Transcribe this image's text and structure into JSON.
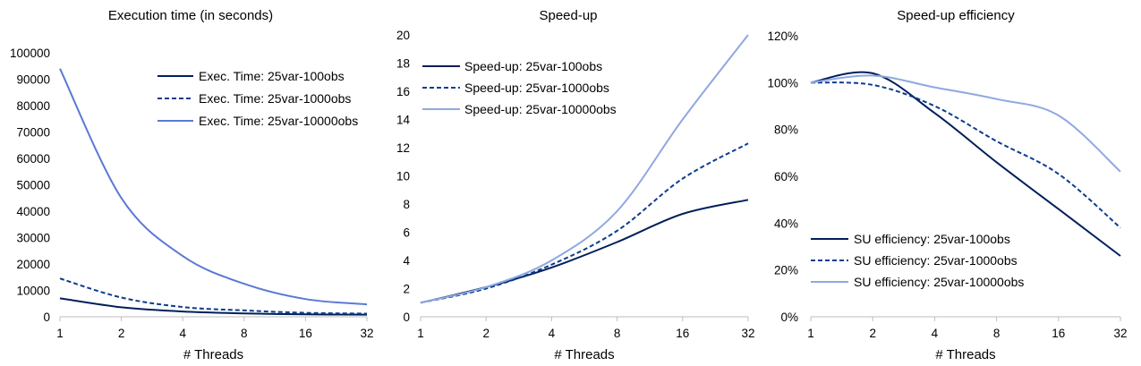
{
  "chart_data": [
    {
      "type": "line",
      "title": "Execution time (in seconds)",
      "xlabel": "# Threads",
      "ylabel": "",
      "x_scale": "log2",
      "categories": [
        "1",
        "2",
        "4",
        "8",
        "16",
        "32"
      ],
      "x": [
        1,
        2,
        4,
        8,
        16,
        32
      ],
      "ylim": [
        0,
        100000
      ],
      "yticks": [
        "0",
        "10000",
        "20000",
        "30000",
        "40000",
        "50000",
        "60000",
        "70000",
        "80000",
        "90000",
        "100000"
      ],
      "legend_position": "top-right",
      "series": [
        {
          "name": "Exec. Time: 25var-100obs",
          "color": "#001f5c",
          "dash": "solid",
          "values": [
            7000,
            3600,
            2000,
            1300,
            900,
            800
          ]
        },
        {
          "name": "Exec. Time: 25var-1000obs",
          "color": "#0b3d8c",
          "dash": "dashed",
          "values": [
            14500,
            7300,
            3700,
            2400,
            1500,
            1200
          ]
        },
        {
          "name": "Exec. Time: 25var-10000obs",
          "color": "#5b79d4",
          "dash": "solid",
          "values": [
            94000,
            45000,
            23000,
            12500,
            6700,
            4700
          ]
        }
      ]
    },
    {
      "type": "line",
      "title": "Speed-up",
      "xlabel": "# Threads",
      "ylabel": "",
      "x_scale": "log2",
      "categories": [
        "1",
        "2",
        "4",
        "8",
        "16",
        "32"
      ],
      "x": [
        1,
        2,
        4,
        8,
        16,
        32
      ],
      "ylim": [
        0,
        20
      ],
      "yticks": [
        "0",
        "2",
        "4",
        "6",
        "8",
        "10",
        "12",
        "14",
        "16",
        "18",
        "20"
      ],
      "legend_position": "top-left",
      "series": [
        {
          "name": "Speed-up: 25var-100obs",
          "color": "#001f5c",
          "dash": "solid",
          "values": [
            1,
            2.1,
            3.5,
            5.3,
            7.3,
            8.3
          ]
        },
        {
          "name": "Speed-up: 25var-1000obs",
          "color": "#0b3d8c",
          "dash": "dashed",
          "values": [
            1,
            2.0,
            3.7,
            6.1,
            9.8,
            12.3
          ]
        },
        {
          "name": "Speed-up: 25var-10000obs",
          "color": "#8fa8e0",
          "dash": "solid",
          "values": [
            1,
            2.1,
            4.0,
            7.5,
            14.0,
            20.0
          ]
        }
      ]
    },
    {
      "type": "line",
      "title": "Speed-up efficiency",
      "xlabel": "# Threads",
      "ylabel": "",
      "x_scale": "log2",
      "categories": [
        "1",
        "2",
        "4",
        "8",
        "16",
        "32"
      ],
      "x": [
        1,
        2,
        4,
        8,
        16,
        32
      ],
      "ylim": [
        0,
        120
      ],
      "yticks": [
        "0%",
        "20%",
        "40%",
        "60%",
        "80%",
        "100%",
        "120%"
      ],
      "legend_position": "bottom-left",
      "series": [
        {
          "name": "SU efficiency: 25var-100obs",
          "color": "#001f5c",
          "dash": "solid",
          "values": [
            100,
            104,
            87,
            66,
            46,
            26
          ]
        },
        {
          "name": "SU efficiency: 25var-1000obs",
          "color": "#0b3d8c",
          "dash": "dashed",
          "values": [
            100,
            99,
            90,
            75,
            61,
            38
          ]
        },
        {
          "name": "SU efficiency: 25var-10000obs",
          "color": "#8fa8e0",
          "dash": "solid",
          "values": [
            100,
            103,
            98,
            93,
            86,
            62
          ]
        }
      ]
    }
  ]
}
